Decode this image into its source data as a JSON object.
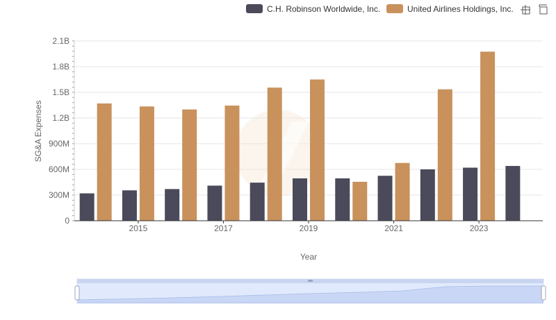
{
  "chart_data": {
    "type": "bar",
    "categories": [
      "2014",
      "2015",
      "2016",
      "2017",
      "2018",
      "2019",
      "2020",
      "2021",
      "2022",
      "2023",
      "2024"
    ],
    "x_tick_labels": [
      "2015",
      "2017",
      "2019",
      "2021",
      "2023"
    ],
    "series": [
      {
        "name": "C.H. Robinson Worldwide, Inc.",
        "color": "#4a4a5a",
        "values": [
          320000000,
          355000000,
          370000000,
          410000000,
          445000000,
          495000000,
          495000000,
          525000000,
          600000000,
          620000000,
          640000000
        ]
      },
      {
        "name": "United Airlines Holdings, Inc.",
        "color": "#c9915c",
        "values": [
          1370000000,
          1335000000,
          1300000000,
          1345000000,
          1555000000,
          1650000000,
          455000000,
          675000000,
          1535000000,
          1975000000,
          null
        ]
      }
    ],
    "ylim": [
      0,
      2100000000
    ],
    "y_ticks": [
      {
        "value": 0,
        "label": "0"
      },
      {
        "value": 300000000,
        "label": "300M"
      },
      {
        "value": 600000000,
        "label": "600M"
      },
      {
        "value": 900000000,
        "label": "900M"
      },
      {
        "value": 1200000000,
        "label": "1.2B"
      },
      {
        "value": 1500000000,
        "label": "1.5B"
      },
      {
        "value": 1800000000,
        "label": "1.8B"
      },
      {
        "value": 2100000000,
        "label": "2.1B"
      }
    ],
    "xlabel": "Year",
    "ylabel": "SG&A Expenses",
    "grid": true,
    "legend_position": "top-right"
  },
  "toolbar": {
    "icons": [
      "crosshair-icon",
      "fullscreen-icon"
    ]
  }
}
